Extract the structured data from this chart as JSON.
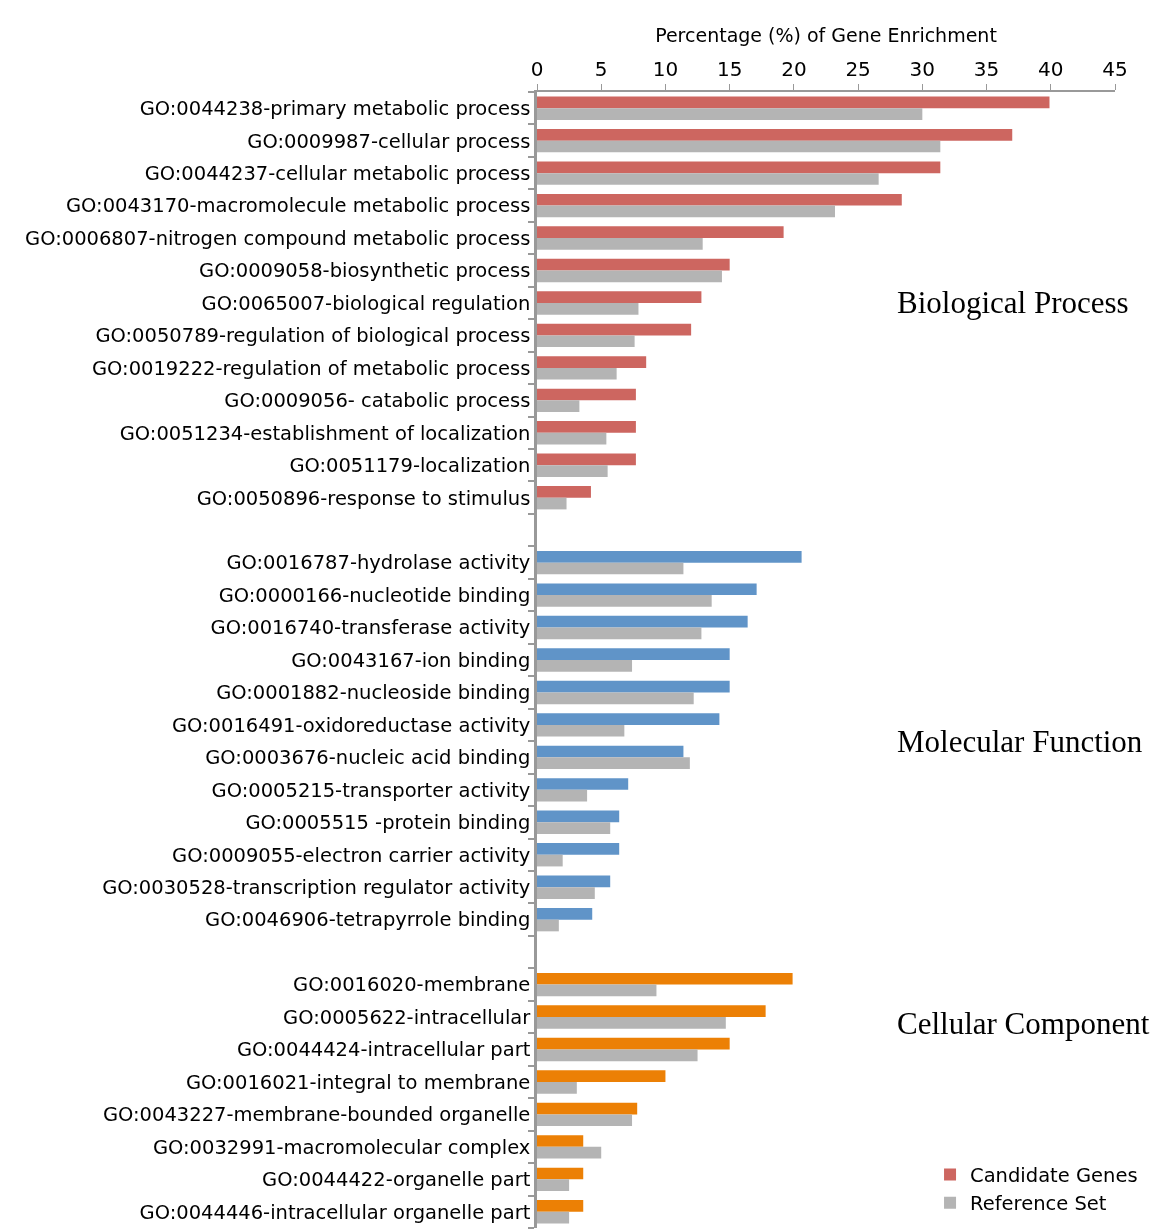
{
  "chart_data": {
    "type": "bar",
    "orientation": "horizontal",
    "xlabel": "Percentage (%) of Gene Enrichment",
    "categories": [
      "GO:0044238-primary metabolic process",
      "GO:0009987-cellular process",
      "GO:0044237-cellular metabolic process",
      "GO:0043170-macromolecule metabolic process",
      "GO:0006807-nitrogen compound metabolic process",
      "GO:0009058-biosynthetic process",
      "GO:0065007-biological regulation",
      "GO:0050789-regulation of biological process",
      "GO:0019222-regulation of metabolic process",
      "GO:0009056- catabolic process",
      "GO:0051234-establishment of localization",
      "GO:0051179-localization",
      "GO:0050896-response to stimulus",
      null,
      "GO:0016787-hydrolase activity",
      "GO:0000166-nucleotide binding",
      "GO:0016740-transferase activity",
      "GO:0043167-ion binding",
      "GO:0001882-nucleoside binding",
      "GO:0016491-oxidoreductase activity",
      "GO:0003676-nucleic acid binding",
      "GO:0005215-transporter activity",
      "GO:0005515 -protein binding",
      "GO:0009055-electron carrier activity",
      "GO:0030528-transcription regulator activity",
      "GO:0046906-tetrapyrrole binding",
      null,
      "GO:0016020-membrane",
      "GO:0005622-intracellular",
      "GO:0044424-intracellular part",
      "GO:0016021-integral to membrane",
      "GO:0043227-membrane-bounded organelle",
      "GO:0032991-macromolecular complex",
      "GO:0044422-organelle part",
      "GO:0044446-intracellular organelle part"
    ],
    "series": [
      {
        "name": "Candidate Genes",
        "color": "#cd6660",
        "colors": [
          "#cd6660",
          "#cd6660",
          "#cd6660",
          "#cd6660",
          "#cd6660",
          "#cd6660",
          "#cd6660",
          "#cd6660",
          "#cd6660",
          "#cd6660",
          "#cd6660",
          "#cd6660",
          "#cd6660",
          null,
          "#6094c8",
          "#6094c8",
          "#6094c8",
          "#6094c8",
          "#6094c8",
          "#6094c8",
          "#6094c8",
          "#6094c8",
          "#6094c8",
          "#6094c8",
          "#6094c8",
          "#6094c8",
          null,
          "#ec8005",
          "#ec8005",
          "#ec8005",
          "#ec8005",
          "#ec8005",
          "#ec8005",
          "#ec8005",
          "#ec8005"
        ],
        "values": [
          39.9,
          37.0,
          31.4,
          28.4,
          19.2,
          15.0,
          12.8,
          12.0,
          8.5,
          7.7,
          7.7,
          7.7,
          4.2,
          null,
          20.6,
          17.1,
          16.4,
          15.0,
          15.0,
          14.2,
          11.4,
          7.1,
          6.4,
          6.4,
          5.7,
          4.3,
          null,
          19.9,
          17.8,
          15.0,
          10.0,
          7.8,
          3.6,
          3.6,
          3.6
        ]
      },
      {
        "name": "Reference Set",
        "color": "#b4b4b4",
        "values": [
          30.0,
          31.4,
          26.6,
          23.2,
          12.9,
          14.4,
          7.9,
          7.6,
          6.2,
          3.3,
          5.4,
          5.5,
          2.3,
          null,
          11.4,
          13.6,
          12.8,
          7.4,
          12.2,
          6.8,
          11.9,
          3.9,
          5.7,
          2.0,
          4.5,
          1.7,
          null,
          9.3,
          14.7,
          12.5,
          3.1,
          7.4,
          5.0,
          2.5,
          2.5
        ]
      }
    ],
    "xlim": [
      0,
      45
    ],
    "xticks": [
      0,
      5,
      10,
      15,
      20,
      25,
      30,
      35,
      40,
      45
    ],
    "annotations": [
      "Biological Process",
      "Molecular Function",
      "Cellular Component"
    ],
    "grid": false,
    "legend": "bottom right"
  }
}
